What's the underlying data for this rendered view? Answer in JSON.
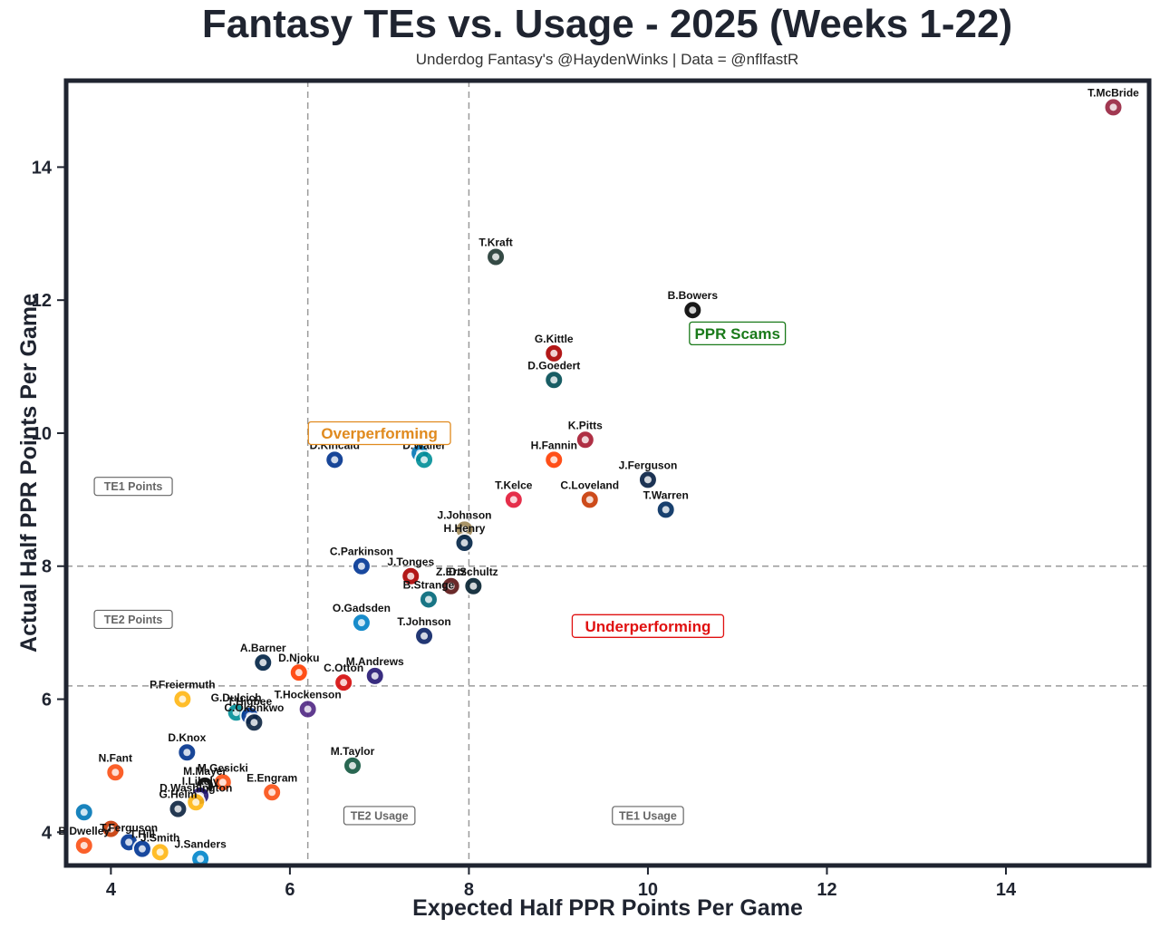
{
  "title": "Fantasy TEs vs. Usage - 2025 (Weeks 1-22)",
  "subtitle": "Underdog Fantasy's @HaydenWinks | Data = @nflfastR",
  "colors": {
    "frame": "#1f2430",
    "grid_line": "#9a9a9a",
    "overperforming": "#e08a1e",
    "ppr_scams": "#1a7a1a",
    "underperforming": "#e01010",
    "neutral_box": "#666666"
  },
  "chart_data": {
    "type": "scatter",
    "title": "Fantasy TEs vs. Usage - 2025 (Weeks 1-22)",
    "xlabel": "Expected Half PPR Points Per Game",
    "ylabel": "Actual Half PPR Points Per Game",
    "xlim": [
      3.5,
      15.6
    ],
    "ylim": [
      3.5,
      15.3
    ],
    "xticks": [
      4,
      6,
      8,
      10,
      12,
      14
    ],
    "yticks": [
      4,
      6,
      8,
      10,
      12,
      14
    ],
    "reference_lines": {
      "x": [
        6.2,
        8.0
      ],
      "y": [
        6.2,
        8.0
      ]
    },
    "quadrant_labels": [
      {
        "text": "Overperforming",
        "x": 7.0,
        "y": 10.0,
        "color": "#e08a1e"
      },
      {
        "text": "PPR Scams",
        "x": 11.0,
        "y": 11.5,
        "color": "#1a7a1a"
      },
      {
        "text": "Underperforming",
        "x": 10.0,
        "y": 7.1,
        "color": "#e01010"
      }
    ],
    "region_labels": [
      {
        "text": "TE1 Points",
        "x": 4.25,
        "y": 9.2
      },
      {
        "text": "TE2 Points",
        "x": 4.25,
        "y": 7.2
      },
      {
        "text": "TE2 Usage",
        "x": 7.0,
        "y": 4.25
      },
      {
        "text": "TE1 Usage",
        "x": 10.0,
        "y": 4.25
      }
    ],
    "points": [
      {
        "name": "T.McBride",
        "x": 15.2,
        "y": 14.9,
        "team": "ARI",
        "color": "#97233f"
      },
      {
        "name": "T.Kraft",
        "x": 8.3,
        "y": 12.65,
        "team": "GB",
        "color": "#203731"
      },
      {
        "name": "B.Bowers",
        "x": 10.5,
        "y": 11.85,
        "team": "LV",
        "color": "#000000"
      },
      {
        "name": "G.Kittle",
        "x": 8.95,
        "y": 11.2,
        "team": "SF",
        "color": "#aa0000"
      },
      {
        "name": "D.Goedert",
        "x": 8.95,
        "y": 10.8,
        "team": "PHI",
        "color": "#004c54"
      },
      {
        "name": "K.Pitts",
        "x": 9.3,
        "y": 9.9,
        "team": "ATL",
        "color": "#a71930"
      },
      {
        "name": "H.Fannin",
        "x": 8.95,
        "y": 9.6,
        "team": "CLE",
        "color": "#ff3c00"
      },
      {
        "name": "D.Kincaid",
        "x": 6.5,
        "y": 9.6,
        "team": "BUF",
        "color": "#00338d"
      },
      {
        "name": "S.LaPorta",
        "x": 7.45,
        "y": 9.7,
        "team": "DET",
        "color": "#0076b6"
      },
      {
        "name": "D.Waller",
        "x": 7.5,
        "y": 9.6,
        "team": "MIA",
        "color": "#008e97"
      },
      {
        "name": "J.Ferguson",
        "x": 10.0,
        "y": 9.3,
        "team": "DAL",
        "color": "#041e42"
      },
      {
        "name": "T.Kelce",
        "x": 8.5,
        "y": 9.0,
        "team": "KC",
        "color": "#e31837"
      },
      {
        "name": "C.Loveland",
        "x": 9.35,
        "y": 9.0,
        "team": "CHI",
        "color": "#c83803"
      },
      {
        "name": "T.Warren",
        "x": 10.2,
        "y": 8.85,
        "team": "IND",
        "color": "#002c5f"
      },
      {
        "name": "J.Johnson",
        "x": 7.95,
        "y": 8.55,
        "team": "NO",
        "color": "#9f8958"
      },
      {
        "name": "H.Henry",
        "x": 7.95,
        "y": 8.35,
        "team": "NE",
        "color": "#002244"
      },
      {
        "name": "C.Parkinson",
        "x": 6.8,
        "y": 8.0,
        "team": "LAR",
        "color": "#003594"
      },
      {
        "name": "J.Tonges",
        "x": 7.35,
        "y": 7.85,
        "team": "SF",
        "color": "#aa0000"
      },
      {
        "name": "Z.Ertz",
        "x": 7.8,
        "y": 7.7,
        "team": "WAS",
        "color": "#5a1414"
      },
      {
        "name": "D.Schultz",
        "x": 8.05,
        "y": 7.7,
        "team": "HOU",
        "color": "#03202f"
      },
      {
        "name": "B.Strange",
        "x": 7.55,
        "y": 7.5,
        "team": "JAX",
        "color": "#006778"
      },
      {
        "name": "O.Gadsden",
        "x": 6.8,
        "y": 7.15,
        "team": "LAC",
        "color": "#0080c6"
      },
      {
        "name": "T.Johnson",
        "x": 7.5,
        "y": 6.95,
        "team": "NYG",
        "color": "#0b2265"
      },
      {
        "name": "A.Barner",
        "x": 5.7,
        "y": 6.55,
        "team": "SEA",
        "color": "#002244"
      },
      {
        "name": "D.Njoku",
        "x": 6.1,
        "y": 6.4,
        "team": "CLE",
        "color": "#ff3c00"
      },
      {
        "name": "M.Andrews",
        "x": 6.95,
        "y": 6.35,
        "team": "BAL",
        "color": "#241773"
      },
      {
        "name": "C.Otton",
        "x": 6.6,
        "y": 6.25,
        "team": "TB",
        "color": "#d50a0a"
      },
      {
        "name": "P.Freiermuth",
        "x": 4.8,
        "y": 6.0,
        "team": "PIT",
        "color": "#ffb612"
      },
      {
        "name": "T.Hockenson",
        "x": 6.2,
        "y": 5.85,
        "team": "MIN",
        "color": "#4f2683"
      },
      {
        "name": "G.Dulcich",
        "x": 5.4,
        "y": 5.8,
        "team": "MIA",
        "color": "#008e97"
      },
      {
        "name": "T.Higbee",
        "x": 5.55,
        "y": 5.75,
        "team": "LAR",
        "color": "#003594"
      },
      {
        "name": "C.Okonkwo",
        "x": 5.6,
        "y": 5.65,
        "team": "TEN",
        "color": "#0c2340"
      },
      {
        "name": "D.Knox",
        "x": 4.85,
        "y": 5.2,
        "team": "BUF",
        "color": "#00338d"
      },
      {
        "name": "M.Taylor",
        "x": 6.7,
        "y": 5.0,
        "team": "NYJ",
        "color": "#125740"
      },
      {
        "name": "N.Fant",
        "x": 4.05,
        "y": 4.9,
        "team": "CIN",
        "color": "#fb4f14"
      },
      {
        "name": "M.Mayer",
        "x": 5.05,
        "y": 4.7,
        "team": "LV",
        "color": "#000000"
      },
      {
        "name": "M.Gesicki",
        "x": 5.25,
        "y": 4.75,
        "team": "CIN",
        "color": "#fb4f14"
      },
      {
        "name": "I.Likely",
        "x": 5.0,
        "y": 4.55,
        "team": "BAL",
        "color": "#241773"
      },
      {
        "name": "E.Engram",
        "x": 5.8,
        "y": 4.6,
        "team": "DEN",
        "color": "#fb4f14"
      },
      {
        "name": "D.Washington",
        "x": 4.95,
        "y": 4.45,
        "team": "PIT",
        "color": "#ffb612"
      },
      {
        "name": "G.Helm",
        "x": 4.75,
        "y": 4.35,
        "team": "TEN",
        "color": "#0c2340"
      },
      {
        "name": "S.LaPorta",
        "x": 3.7,
        "y": 4.3,
        "team": "DET",
        "color": "#0076b6"
      },
      {
        "name": "C.Kmet",
        "x": 4.0,
        "y": 4.05,
        "team": "CHI",
        "color": "#c83803"
      },
      {
        "name": "T.Ferguson",
        "x": 4.2,
        "y": 3.85,
        "team": "LAR",
        "color": "#003594"
      },
      {
        "name": "B.Dwelley",
        "x": 3.7,
        "y": 3.8,
        "team": "CIN",
        "color": "#fb4f14"
      },
      {
        "name": "T.Hill",
        "x": 4.35,
        "y": 3.75,
        "team": "LAR",
        "color": "#003594"
      },
      {
        "name": "J.Smith",
        "x": 4.55,
        "y": 3.7,
        "team": "PIT",
        "color": "#ffb612"
      },
      {
        "name": "J.Sanders",
        "x": 5.0,
        "y": 3.6,
        "team": "CAR",
        "color": "#0085ca"
      }
    ],
    "shown_labels": [
      "T.McBride",
      "T.Kraft",
      "B.Bowers",
      "G.Kittle",
      "D.Goedert",
      "K.Pitts",
      "H.Fannin",
      "S.LaPorta",
      "D.Kincaid",
      "D.Waller",
      "J.Ferguson",
      "T.Kelce",
      "C.Loveland",
      "T.Warren",
      "J.Johnson",
      "H.Henry",
      "C.Parkinson",
      "J.Tonges",
      "D.Schultz",
      "Z.Ertz",
      "B.Strange",
      "O.Gadsden",
      "T.Johnson",
      "A.Barner",
      "D.Njoku",
      "M.Andrews",
      "C.Otton",
      "P.Freiermuth",
      "G.Dulcich",
      "T.Higbee",
      "T.Hockenson",
      "C.Okonkwo",
      "D.Knox",
      "M.Taylor",
      "N.Fant",
      "M.Mayer",
      "M.Gesicki",
      "I.Likely",
      "E.Engram",
      "D.Washington",
      "G.Helm",
      "T.Ferguson",
      "J.Smith",
      "B.Dwelley",
      "T.Hill",
      "J.Sanders"
    ]
  }
}
